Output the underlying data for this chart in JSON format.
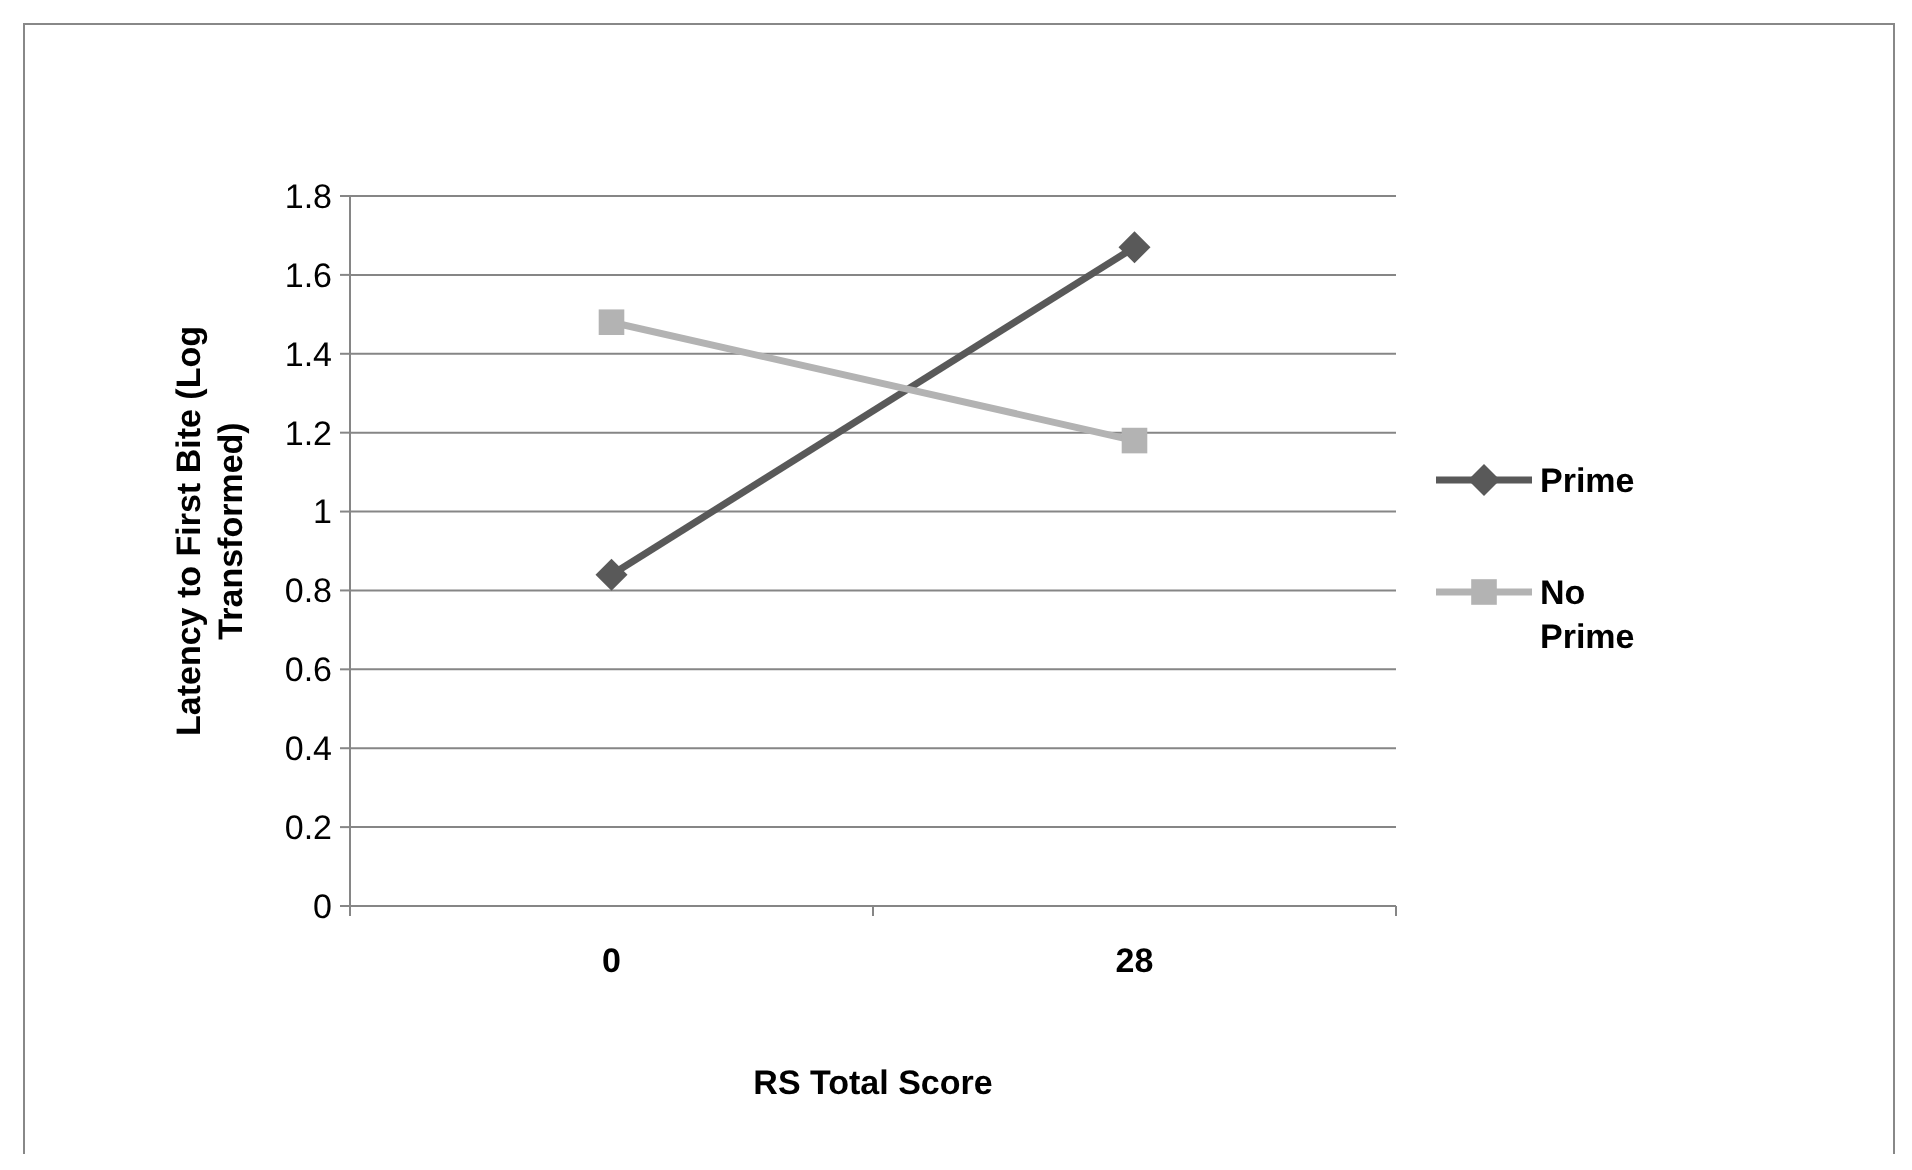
{
  "chart_data": {
    "type": "line",
    "xlabel": "RS Total Score",
    "ylabel": "Latency to First  Bite (Log Transformed)",
    "categories": [
      "0",
      "28"
    ],
    "series": [
      {
        "name": "Prime",
        "color": "#595959",
        "marker": "diamond",
        "values": [
          0.84,
          1.67
        ]
      },
      {
        "name": "No Prime",
        "color": "#b3b3b3",
        "marker": "square",
        "values": [
          1.48,
          1.18
        ]
      }
    ],
    "ylim": [
      0,
      1.8
    ],
    "yticks": [
      0,
      0.2,
      0.4,
      0.6,
      0.8,
      1,
      1.2,
      1.4,
      1.6,
      1.8
    ],
    "grid": "y",
    "legend": "right"
  }
}
